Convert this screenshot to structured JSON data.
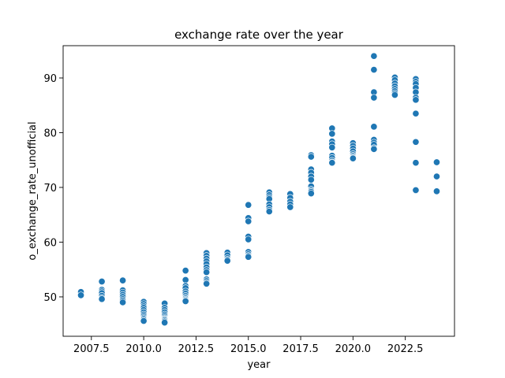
{
  "chart_data": {
    "type": "scatter",
    "title": "exchange rate over the year",
    "xlabel": "year",
    "ylabel": "o_exchange_rate_unofficial",
    "xlim": [
      2006.15,
      2024.85
    ],
    "ylim": [
      42.8,
      95.9
    ],
    "xticks": [
      2007.5,
      2010.0,
      2012.5,
      2015.0,
      2017.5,
      2020.0,
      2022.5
    ],
    "xtick_labels": [
      "2007.5",
      "2010.0",
      "2012.5",
      "2015.0",
      "2017.5",
      "2020.0",
      "2022.5"
    ],
    "yticks": [
      50,
      60,
      70,
      80,
      90
    ],
    "ytick_labels": [
      "50",
      "60",
      "70",
      "80",
      "90"
    ],
    "grid": false,
    "marker_color": "#1f77b4",
    "marker_edge_color": "#ffffff",
    "series": [
      {
        "x": [
          2007,
          2007,
          2008,
          2008,
          2008,
          2008,
          2008,
          2008,
          2008,
          2009,
          2009,
          2009,
          2009,
          2009,
          2009,
          2009,
          2009,
          2010,
          2010,
          2010,
          2010,
          2010,
          2010,
          2010,
          2010,
          2010,
          2010,
          2010,
          2010,
          2011,
          2011,
          2011,
          2011,
          2011,
          2011,
          2011,
          2011,
          2011,
          2011,
          2011,
          2011,
          2012,
          2012,
          2012,
          2012,
          2012,
          2012,
          2012,
          2012,
          2012,
          2012,
          2012,
          2012,
          2013,
          2013,
          2013,
          2013,
          2013,
          2013,
          2013,
          2013,
          2013,
          2013,
          2013,
          2013,
          2014,
          2014,
          2014,
          2014,
          2014,
          2015,
          2015,
          2015,
          2015,
          2015,
          2015,
          2015,
          2015,
          2015,
          2016,
          2016,
          2016,
          2016,
          2016,
          2016,
          2016,
          2016,
          2017,
          2017,
          2017,
          2017,
          2017,
          2018,
          2018,
          2018,
          2018,
          2018,
          2018,
          2018,
          2018,
          2018,
          2018,
          2018,
          2019,
          2019,
          2019,
          2019,
          2019,
          2019,
          2019,
          2019,
          2019,
          2019,
          2020,
          2020,
          2020,
          2020,
          2020,
          2020,
          2020,
          2020,
          2020,
          2021,
          2021,
          2021,
          2021,
          2021,
          2021,
          2021,
          2021,
          2021,
          2021,
          2022,
          2022,
          2022,
          2022,
          2022,
          2022,
          2022,
          2022,
          2023,
          2023,
          2023,
          2023,
          2023,
          2023,
          2023,
          2023,
          2023,
          2023,
          2023,
          2023,
          2024,
          2024,
          2024
        ],
        "y": [
          50.9,
          50.3,
          52.8,
          51.3,
          51.0,
          50.7,
          50.2,
          49.8,
          49.6,
          53.0,
          51.2,
          50.8,
          50.4,
          50.0,
          49.6,
          49.3,
          49.0,
          49.1,
          48.7,
          48.3,
          48.0,
          47.6,
          47.2,
          46.8,
          46.5,
          46.2,
          46.0,
          45.8,
          45.6,
          48.8,
          48.0,
          47.6,
          47.2,
          46.8,
          46.5,
          46.2,
          46.0,
          45.9,
          45.7,
          45.5,
          45.3,
          54.8,
          53.1,
          52.0,
          51.6,
          51.0,
          50.6,
          50.2,
          49.9,
          49.7,
          49.5,
          49.3,
          49.2,
          58.0,
          57.5,
          57.0,
          56.5,
          56.0,
          55.4,
          54.9,
          54.5,
          53.2,
          52.9,
          52.6,
          52.4,
          58.1,
          57.6,
          57.1,
          56.8,
          56.6,
          66.8,
          64.4,
          63.8,
          61.0,
          60.5,
          58.2,
          57.8,
          57.5,
          57.3,
          69.1,
          68.6,
          68.2,
          67.9,
          66.9,
          66.4,
          65.9,
          65.6,
          68.8,
          68.1,
          67.4,
          66.9,
          66.4,
          75.9,
          75.6,
          73.3,
          72.7,
          72.0,
          71.4,
          70.2,
          69.6,
          69.4,
          69.2,
          68.9,
          80.8,
          79.8,
          78.4,
          77.9,
          77.3,
          75.8,
          75.4,
          74.9,
          74.6,
          74.5,
          78.1,
          77.6,
          77.1,
          76.6,
          76.1,
          75.8,
          75.6,
          75.4,
          75.3,
          94.0,
          91.5,
          87.4,
          86.4,
          81.1,
          78.7,
          78.2,
          77.8,
          77.2,
          77.0,
          90.1,
          89.6,
          89.0,
          88.5,
          88.0,
          87.6,
          87.2,
          86.9,
          89.8,
          89.3,
          88.9,
          88.2,
          87.4,
          86.4,
          86.0,
          83.5,
          78.3,
          74.5,
          69.4,
          69.5,
          74.6,
          72.0,
          69.3
        ]
      }
    ]
  }
}
